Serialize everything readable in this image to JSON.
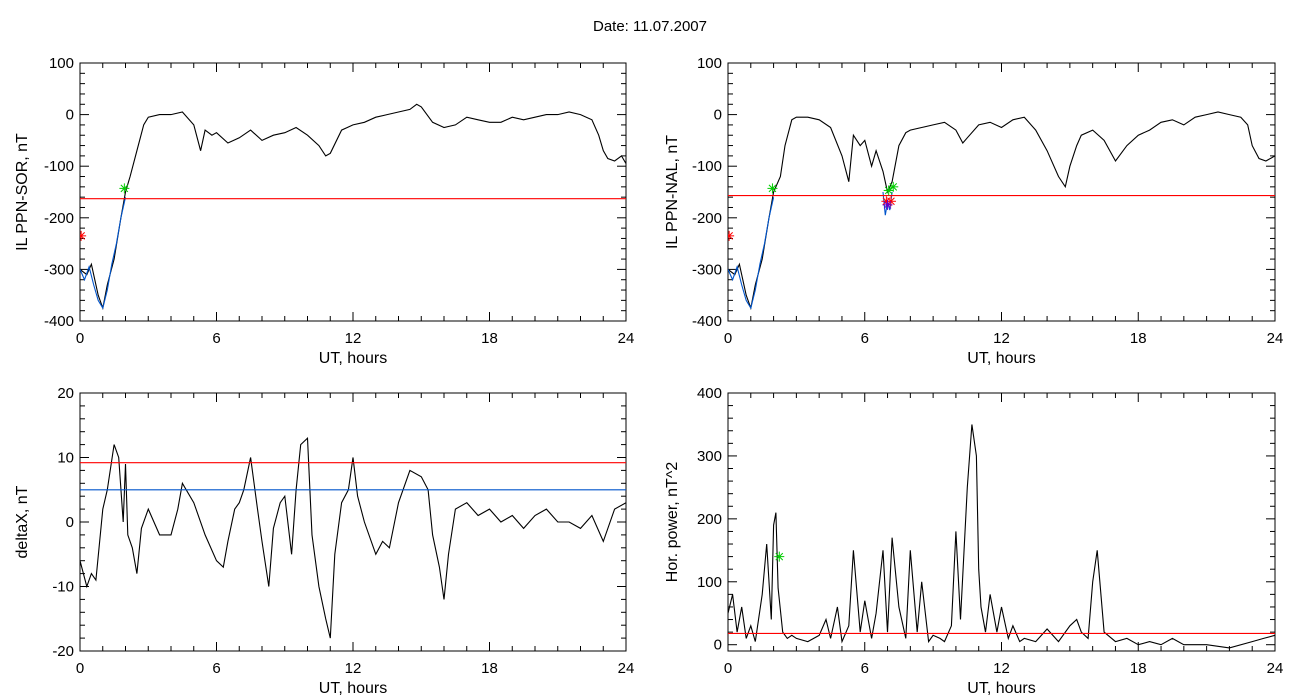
{
  "page": {
    "title": "Date:  11.07.2007"
  },
  "chart_data": [
    {
      "type": "line",
      "xlabel": "UT, hours",
      "ylabel": "IL PPN-SOR, nT",
      "xlim": [
        0,
        24
      ],
      "ylim": [
        -400,
        100
      ],
      "xticks": [
        0,
        6,
        12,
        18,
        24
      ],
      "yticks": [
        -400,
        -300,
        -200,
        -100,
        0,
        100
      ],
      "grid": false,
      "series": [
        {
          "color": "#000000",
          "x": [
            0,
            0.3,
            0.5,
            0.8,
            1.0,
            1.2,
            1.5,
            1.8,
            2.0,
            2.2,
            2.5,
            2.8,
            3.0,
            3.5,
            4.0,
            4.5,
            5.0,
            5.3,
            5.5,
            5.8,
            6.0,
            6.5,
            7.0,
            7.5,
            8.0,
            8.5,
            9.0,
            9.5,
            10.0,
            10.5,
            10.8,
            11.0,
            11.5,
            12.0,
            12.5,
            13.0,
            13.5,
            14.0,
            14.5,
            14.8,
            15.0,
            15.5,
            16.0,
            16.5,
            17.0,
            17.5,
            18.0,
            18.5,
            19.0,
            19.5,
            20.0,
            20.5,
            21.0,
            21.5,
            22.0,
            22.5,
            22.8,
            23.0,
            23.2,
            23.5,
            23.8,
            24.0
          ],
          "y": [
            -300,
            -310,
            -290,
            -350,
            -375,
            -330,
            -280,
            -200,
            -150,
            -120,
            -70,
            -20,
            -5,
            0,
            0,
            5,
            -20,
            -70,
            -30,
            -40,
            -35,
            -55,
            -45,
            -30,
            -50,
            -40,
            -35,
            -25,
            -40,
            -60,
            -80,
            -75,
            -30,
            -20,
            -15,
            -5,
            0,
            5,
            10,
            20,
            15,
            -15,
            -25,
            -20,
            -5,
            -10,
            -15,
            -15,
            -5,
            -10,
            -5,
            0,
            0,
            5,
            0,
            -10,
            -40,
            -70,
            -85,
            -90,
            -80,
            -95
          ]
        },
        {
          "color": "#0055cc",
          "x": [
            0,
            0.2,
            0.4,
            0.6,
            0.8,
            1.0,
            1.2,
            1.4,
            1.6,
            1.8,
            2.0
          ],
          "y": [
            -300,
            -320,
            -295,
            -330,
            -360,
            -375,
            -340,
            -290,
            -250,
            -200,
            -160
          ]
        },
        {
          "color": "#ff0000",
          "x": [
            0,
            24
          ],
          "y": [
            -163,
            -163
          ]
        }
      ],
      "markers": [
        {
          "x": 1.95,
          "y": -143,
          "color": "#00cc00",
          "symbol": "asterisk"
        },
        {
          "x": 0.05,
          "y": -235,
          "color": "#ff0000",
          "symbol": "asterisk"
        }
      ]
    },
    {
      "type": "line",
      "xlabel": "UT, hours",
      "ylabel": "IL PPN-NAL, nT",
      "xlim": [
        0,
        24
      ],
      "ylim": [
        -400,
        100
      ],
      "xticks": [
        0,
        6,
        12,
        18,
        24
      ],
      "yticks": [
        -400,
        -300,
        -200,
        -100,
        0,
        100
      ],
      "grid": false,
      "series": [
        {
          "color": "#000000",
          "x": [
            0,
            0.3,
            0.5,
            0.8,
            1.0,
            1.2,
            1.5,
            1.8,
            2.0,
            2.3,
            2.5,
            2.8,
            3.0,
            3.5,
            4.0,
            4.5,
            5.0,
            5.3,
            5.5,
            5.8,
            6.0,
            6.3,
            6.5,
            6.8,
            7.0,
            7.2,
            7.5,
            7.8,
            8.0,
            8.5,
            9.0,
            9.5,
            10.0,
            10.3,
            10.5,
            11.0,
            11.5,
            12.0,
            12.5,
            13.0,
            13.5,
            14.0,
            14.5,
            14.8,
            15.0,
            15.3,
            15.5,
            16.0,
            16.5,
            17.0,
            17.5,
            18.0,
            18.5,
            19.0,
            19.5,
            20.0,
            20.5,
            21.0,
            21.5,
            22.0,
            22.5,
            22.8,
            23.0,
            23.3,
            23.6,
            24.0
          ],
          "y": [
            -300,
            -310,
            -290,
            -350,
            -375,
            -330,
            -280,
            -200,
            -150,
            -120,
            -60,
            -10,
            -5,
            -5,
            -10,
            -25,
            -80,
            -130,
            -40,
            -60,
            -50,
            -100,
            -70,
            -110,
            -150,
            -130,
            -60,
            -35,
            -30,
            -25,
            -20,
            -15,
            -30,
            -55,
            -45,
            -20,
            -15,
            -25,
            -10,
            -5,
            -30,
            -70,
            -120,
            -140,
            -100,
            -60,
            -40,
            -30,
            -50,
            -90,
            -60,
            -40,
            -30,
            -15,
            -10,
            -20,
            -5,
            0,
            5,
            0,
            -5,
            -20,
            -60,
            -85,
            -90,
            -80
          ]
        },
        {
          "color": "#0055cc",
          "x": [
            0,
            0.2,
            0.4,
            0.6,
            0.8,
            1.0,
            1.2,
            1.4,
            1.6,
            1.8,
            2.0
          ],
          "y": [
            -300,
            -320,
            -295,
            -330,
            -360,
            -375,
            -340,
            -290,
            -250,
            -200,
            -160
          ]
        },
        {
          "color": "#0055cc",
          "x": [
            6.8,
            6.9,
            7.0,
            7.1,
            7.2
          ],
          "y": [
            -150,
            -195,
            -170,
            -185,
            -150
          ]
        },
        {
          "color": "#ff0000",
          "x": [
            0,
            24
          ],
          "y": [
            -157,
            -157
          ]
        }
      ],
      "markers": [
        {
          "x": 1.95,
          "y": -143,
          "color": "#00cc00",
          "symbol": "asterisk"
        },
        {
          "x": 7.05,
          "y": -147,
          "color": "#00cc00",
          "symbol": "asterisk"
        },
        {
          "x": 7.25,
          "y": -140,
          "color": "#00cc00",
          "symbol": "asterisk"
        },
        {
          "x": 6.95,
          "y": -168,
          "color": "#ff0000",
          "symbol": "asterisk"
        },
        {
          "x": 7.15,
          "y": -168,
          "color": "#ff0000",
          "symbol": "asterisk"
        },
        {
          "x": 7.0,
          "y": -175,
          "color": "#6600cc",
          "symbol": "asterisk"
        },
        {
          "x": 0.05,
          "y": -235,
          "color": "#ff0000",
          "symbol": "asterisk"
        }
      ]
    },
    {
      "type": "line",
      "xlabel": "UT, hours",
      "ylabel": "deltaX, nT",
      "xlim": [
        0,
        24
      ],
      "ylim": [
        -20,
        20
      ],
      "xticks": [
        0,
        6,
        12,
        18,
        24
      ],
      "yticks": [
        -20,
        -10,
        0,
        10,
        20
      ],
      "grid": false,
      "series": [
        {
          "color": "#000000",
          "x": [
            0,
            0.3,
            0.5,
            0.7,
            1.0,
            1.2,
            1.5,
            1.7,
            1.9,
            2.0,
            2.1,
            2.3,
            2.5,
            2.7,
            3.0,
            3.5,
            4.0,
            4.3,
            4.5,
            5.0,
            5.5,
            6.0,
            6.3,
            6.5,
            6.8,
            7.0,
            7.2,
            7.5,
            7.8,
            8.0,
            8.3,
            8.5,
            8.8,
            9.0,
            9.3,
            9.5,
            9.7,
            10.0,
            10.2,
            10.5,
            10.8,
            11.0,
            11.2,
            11.5,
            11.8,
            12.0,
            12.2,
            12.5,
            13.0,
            13.3,
            13.6,
            14.0,
            14.5,
            15.0,
            15.3,
            15.5,
            15.8,
            16.0,
            16.2,
            16.5,
            17.0,
            17.5,
            18.0,
            18.5,
            19.0,
            19.5,
            20.0,
            20.5,
            21.0,
            21.5,
            22.0,
            22.5,
            23.0,
            23.5,
            24.0
          ],
          "y": [
            -6,
            -10,
            -8,
            -9,
            2,
            5,
            12,
            10,
            0,
            9,
            -2,
            -4,
            -8,
            -1,
            2,
            -2,
            -2,
            2,
            6,
            3,
            -2,
            -6,
            -7,
            -3,
            2,
            3,
            5,
            10,
            2,
            -3,
            -10,
            -1,
            3,
            4,
            -5,
            5,
            12,
            13,
            -2,
            -10,
            -15,
            -18,
            -5,
            3,
            5,
            10,
            4,
            0,
            -5,
            -3,
            -4,
            3,
            8,
            7,
            5,
            -2,
            -7,
            -12,
            -5,
            2,
            3,
            1,
            2,
            0,
            1,
            -1,
            1,
            2,
            0,
            0,
            -1,
            1,
            -3,
            2,
            3
          ]
        },
        {
          "color": "#ff0000",
          "x": [
            0,
            24
          ],
          "y": [
            9.2,
            9.2
          ]
        },
        {
          "color": "#0055cc",
          "x": [
            0,
            24
          ],
          "y": [
            5,
            5
          ]
        }
      ],
      "markers": []
    },
    {
      "type": "line",
      "xlabel": "UT, hours",
      "ylabel": "Hor. power, nT^2",
      "xlim": [
        0,
        24
      ],
      "ylim": [
        -10,
        400
      ],
      "xticks": [
        0,
        6,
        12,
        18,
        24
      ],
      "yticks": [
        0,
        100,
        200,
        300,
        400
      ],
      "grid": false,
      "series": [
        {
          "color": "#000000",
          "x": [
            0,
            0.2,
            0.4,
            0.6,
            0.8,
            1.0,
            1.2,
            1.5,
            1.7,
            1.9,
            2.0,
            2.1,
            2.2,
            2.4,
            2.6,
            2.8,
            3.0,
            3.5,
            4.0,
            4.3,
            4.5,
            4.8,
            5.0,
            5.3,
            5.5,
            5.8,
            6.0,
            6.3,
            6.5,
            6.8,
            7.0,
            7.2,
            7.5,
            7.8,
            8.0,
            8.3,
            8.5,
            8.8,
            9.0,
            9.3,
            9.5,
            9.8,
            10.0,
            10.2,
            10.5,
            10.7,
            10.9,
            11.0,
            11.1,
            11.3,
            11.5,
            11.8,
            12.0,
            12.3,
            12.5,
            12.8,
            13.0,
            13.5,
            14.0,
            14.5,
            15.0,
            15.3,
            15.5,
            15.8,
            16.0,
            16.2,
            16.5,
            17.0,
            17.5,
            18.0,
            18.5,
            19.0,
            19.5,
            20.0,
            21.0,
            22.0,
            23.0,
            23.5,
            24.0
          ],
          "y": [
            50,
            80,
            20,
            60,
            10,
            30,
            5,
            80,
            160,
            40,
            190,
            210,
            90,
            20,
            10,
            15,
            10,
            5,
            15,
            40,
            10,
            60,
            5,
            30,
            150,
            20,
            70,
            10,
            50,
            150,
            20,
            170,
            60,
            10,
            150,
            20,
            100,
            5,
            15,
            10,
            5,
            30,
            180,
            40,
            250,
            350,
            300,
            120,
            60,
            20,
            80,
            20,
            60,
            10,
            30,
            5,
            10,
            5,
            25,
            5,
            30,
            40,
            20,
            10,
            100,
            150,
            20,
            5,
            10,
            0,
            5,
            0,
            10,
            0,
            0,
            -5,
            5,
            10,
            15
          ]
        },
        {
          "color": "#ff0000",
          "x": [
            0,
            24
          ],
          "y": [
            18,
            18
          ]
        }
      ],
      "markers": [
        {
          "x": 2.25,
          "y": 140,
          "color": "#00cc00",
          "symbol": "asterisk"
        }
      ]
    }
  ]
}
